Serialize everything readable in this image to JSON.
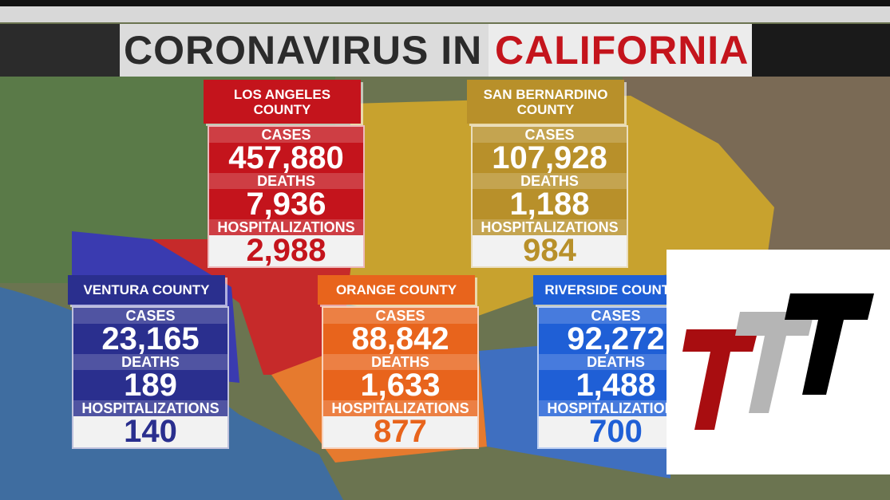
{
  "header": {
    "title_left": "CORONAVIRUS IN",
    "title_right": "CALIFORNIA"
  },
  "labels": {
    "cases": "CASES",
    "deaths": "DEATHS",
    "hospitalizations": "HOSPITALIZATIONS"
  },
  "counties": [
    {
      "name": "LOS ANGELES COUNTY",
      "cases": "457,880",
      "deaths": "7,936",
      "hospitalizations": "2,988",
      "color": "#c4141c"
    },
    {
      "name": "SAN BERNARDINO COUNTY",
      "cases": "107,928",
      "deaths": "1,188",
      "hospitalizations": "984",
      "color": "#b8902a"
    },
    {
      "name": "VENTURA COUNTY",
      "cases": "23,165",
      "deaths": "189",
      "hospitalizations": "140",
      "color": "#2a2f8e"
    },
    {
      "name": "ORANGE COUNTY",
      "cases": "88,842",
      "deaths": "1,633",
      "hospitalizations": "877",
      "color": "#e8641c"
    },
    {
      "name": "RIVERSIDE COUNTY",
      "cases": "92,272",
      "deaths": "1,488",
      "hospitalizations": "700",
      "color": "#1f5fd6"
    }
  ]
}
